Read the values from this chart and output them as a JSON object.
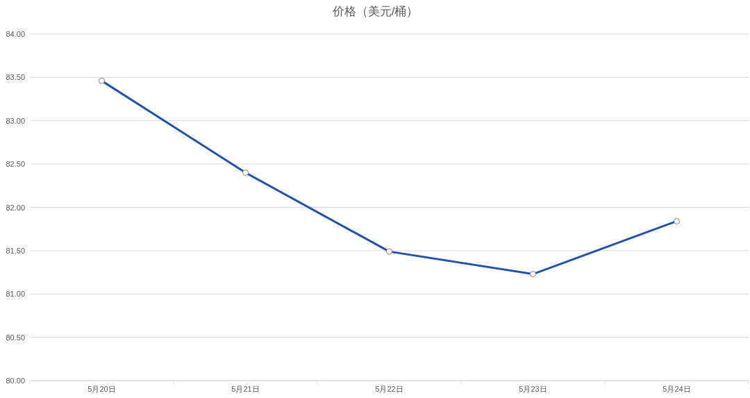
{
  "chart_data": {
    "type": "line",
    "title": "价格（美元/桶）",
    "categories": [
      "5月20日",
      "5月21日",
      "5月22日",
      "5月23日",
      "5月24日"
    ],
    "series": [
      {
        "color": "#2352ad",
        "values": [
          83.46,
          82.4,
          81.49,
          81.23,
          81.84
        ]
      }
    ],
    "ylim": [
      80,
      84
    ],
    "yticks": [
      {
        "value": 80,
        "label": "80.00"
      },
      {
        "value": 80.5,
        "label": "80.50"
      },
      {
        "value": 81,
        "label": "81.00"
      },
      {
        "value": 81.5,
        "label": "81.50"
      },
      {
        "value": 82,
        "label": "82.00"
      },
      {
        "value": 82.5,
        "label": "82.50"
      },
      {
        "value": 83,
        "label": "83.00"
      },
      {
        "value": 83.5,
        "label": "83.50"
      },
      {
        "value": 84,
        "label": "84.00"
      }
    ],
    "grid": "y",
    "marker": "circle",
    "line_style": "solid"
  }
}
